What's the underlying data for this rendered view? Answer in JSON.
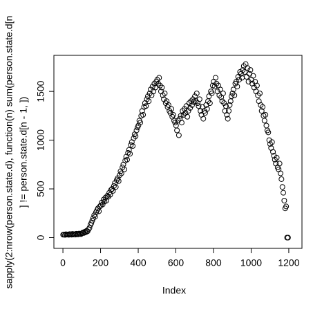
{
  "chart_data": {
    "type": "scatter",
    "x_label": "Index",
    "y_label": [
      "sapply(2:nrow(person.state.d),  function(n) sum(person.state.d[n",
      "] != person.state.d[n - 1, ])"
    ],
    "xlim": [
      -48,
      1270
    ],
    "ylim": [
      -110,
      1870
    ],
    "xticks": [
      0,
      200,
      400,
      600,
      800,
      1000,
      1200
    ],
    "yticks": [
      0,
      500,
      1000,
      1500
    ],
    "color": "#000000",
    "x": [
      1,
      6,
      11,
      16,
      21,
      26,
      31,
      36,
      41,
      46,
      51,
      56,
      61,
      66,
      71,
      76,
      81,
      86,
      91,
      96,
      101,
      106,
      111,
      116,
      121,
      126,
      131,
      136,
      141,
      146,
      151,
      156,
      161,
      166,
      171,
      176,
      181,
      186,
      191,
      196,
      201,
      206,
      211,
      216,
      221,
      226,
      231,
      236,
      241,
      246,
      251,
      256,
      261,
      266,
      271,
      276,
      281,
      286,
      291,
      296,
      301,
      306,
      311,
      316,
      321,
      326,
      331,
      336,
      341,
      346,
      351,
      356,
      361,
      366,
      371,
      376,
      381,
      386,
      391,
      396,
      401,
      406,
      411,
      416,
      421,
      426,
      431,
      436,
      441,
      446,
      451,
      456,
      461,
      466,
      471,
      476,
      481,
      486,
      491,
      496,
      501,
      506,
      511,
      516,
      521,
      526,
      531,
      536,
      541,
      546,
      551,
      556,
      561,
      566,
      571,
      576,
      581,
      586,
      591,
      596,
      601,
      606,
      611,
      616,
      621,
      626,
      631,
      636,
      641,
      646,
      651,
      656,
      661,
      666,
      671,
      676,
      681,
      686,
      691,
      696,
      701,
      706,
      711,
      716,
      721,
      726,
      731,
      736,
      741,
      746,
      751,
      756,
      761,
      766,
      771,
      776,
      781,
      786,
      791,
      796,
      801,
      806,
      811,
      816,
      821,
      826,
      831,
      836,
      841,
      846,
      851,
      856,
      861,
      866,
      871,
      876,
      881,
      886,
      891,
      896,
      901,
      906,
      911,
      916,
      921,
      926,
      931,
      936,
      941,
      946,
      951,
      956,
      961,
      966,
      971,
      976,
      981,
      986,
      991,
      996,
      1001,
      1006,
      1011,
      1016,
      1021,
      1026,
      1031,
      1036,
      1041,
      1046,
      1051,
      1056,
      1061,
      1066,
      1071,
      1076,
      1081,
      1086,
      1091,
      1096,
      1101,
      1106,
      1111,
      1116,
      1121,
      1126,
      1131,
      1136,
      1141,
      1146,
      1151,
      1156,
      1161,
      1166,
      1171,
      1176,
      1181,
      1186,
      1191,
      1196
    ],
    "values": [
      30,
      32,
      28,
      35,
      31,
      33,
      29,
      36,
      34,
      30,
      38,
      32,
      35,
      31,
      40,
      37,
      33,
      42,
      39,
      36,
      45,
      52,
      48,
      60,
      55,
      70,
      65,
      85,
      100,
      130,
      150,
      175,
      200,
      230,
      215,
      260,
      280,
      300,
      270,
      320,
      330,
      360,
      340,
      390,
      370,
      410,
      380,
      430,
      420,
      460,
      440,
      490,
      500,
      480,
      530,
      560,
      520,
      590,
      610,
      580,
      640,
      680,
      660,
      720,
      750,
      700,
      790,
      830,
      800,
      870,
      900,
      860,
      950,
      980,
      940,
      1020,
      1060,
      1040,
      1100,
      1130,
      1150,
      1200,
      1180,
      1250,
      1300,
      1260,
      1340,
      1380,
      1350,
      1420,
      1450,
      1400,
      1480,
      1520,
      1460,
      1550,
      1500,
      1580,
      1540,
      1600,
      1620,
      1580,
      1640,
      1560,
      1500,
      1540,
      1460,
      1420,
      1480,
      1380,
      1400,
      1340,
      1360,
      1300,
      1280,
      1320,
      1240,
      1260,
      1200,
      1180,
      1150,
      1100,
      1200,
      1050,
      1220,
      1250,
      1180,
      1300,
      1260,
      1320,
      1280,
      1350,
      1240,
      1300,
      1380,
      1330,
      1400,
      1360,
      1420,
      1390,
      1450,
      1400,
      1480,
      1380,
      1350,
      1420,
      1300,
      1260,
      1340,
      1220,
      1300,
      1280,
      1360,
      1320,
      1400,
      1450,
      1380,
      1500,
      1480,
      1560,
      1600,
      1550,
      1640,
      1580,
      1500,
      1560,
      1460,
      1520,
      1440,
      1400,
      1480,
      1380,
      1300,
      1350,
      1260,
      1220,
      1300,
      1360,
      1400,
      1450,
      1480,
      1520,
      1460,
      1580,
      1600,
      1550,
      1650,
      1620,
      1700,
      1680,
      1640,
      1720,
      1760,
      1700,
      1780,
      1650,
      1740,
      1600,
      1680,
      1720,
      1620,
      1580,
      1660,
      1540,
      1600,
      1500,
      1560,
      1460,
      1400,
      1480,
      1360,
      1300,
      1340,
      1250,
      1200,
      1260,
      1150,
      1100,
      1080,
      1000,
      960,
      920,
      980,
      880,
      840,
      800,
      760,
      820,
      720,
      700,
      760,
      660,
      600,
      520,
      460,
      380,
      300,
      320,
      0,
      0
    ]
  }
}
